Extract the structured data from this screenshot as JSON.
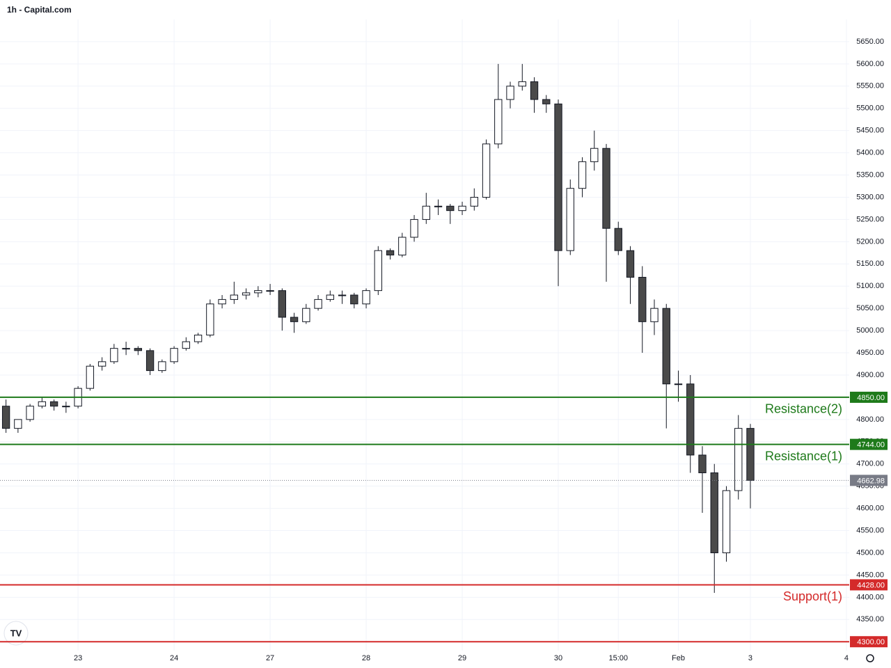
{
  "chart_data": {
    "type": "candlestick",
    "title": "1h - Capital.com",
    "xlim": [
      -19.5,
      192.7
    ],
    "xticks": [
      {
        "value": 0,
        "label": "23"
      },
      {
        "value": 24,
        "label": "24"
      },
      {
        "value": 48,
        "label": "27"
      },
      {
        "value": 72,
        "label": "28"
      },
      {
        "value": 96,
        "label": "29"
      },
      {
        "value": 120,
        "label": "30"
      },
      {
        "value": 135,
        "label": "15:00"
      },
      {
        "value": 150,
        "label": "Feb"
      },
      {
        "value": 168,
        "label": "3"
      },
      {
        "value": 192,
        "label": "4"
      }
    ],
    "ylim": [
      4280,
      5700
    ],
    "yticks": [
      {
        "value": 4350,
        "label": "4350.00"
      },
      {
        "value": 4400,
        "label": "4400.00"
      },
      {
        "value": 4450,
        "label": "4450.00"
      },
      {
        "value": 4500,
        "label": "4500.00"
      },
      {
        "value": 4550,
        "label": "4550.00"
      },
      {
        "value": 4600,
        "label": "4600.00"
      },
      {
        "value": 4650,
        "label": "4650.00"
      },
      {
        "value": 4700,
        "label": "4700.00"
      },
      {
        "value": 4750,
        "label": "4750.00"
      },
      {
        "value": 4800,
        "label": "4800.00"
      },
      {
        "value": 4900,
        "label": "4900.00"
      },
      {
        "value": 4950,
        "label": "4950.00"
      },
      {
        "value": 5000,
        "label": "5000.00"
      },
      {
        "value": 5050,
        "label": "5050.00"
      },
      {
        "value": 5100,
        "label": "5100.00"
      },
      {
        "value": 5150,
        "label": "5150.00"
      },
      {
        "value": 5200,
        "label": "5200.00"
      },
      {
        "value": 5250,
        "label": "5250.00"
      },
      {
        "value": 5300,
        "label": "5300.00"
      },
      {
        "value": 5350,
        "label": "5350.00"
      },
      {
        "value": 5400,
        "label": "5400.00"
      },
      {
        "value": 5450,
        "label": "5450.00"
      },
      {
        "value": 5500,
        "label": "5500.00"
      },
      {
        "value": 5550,
        "label": "5550.00"
      },
      {
        "value": 5600,
        "label": "5600.00"
      },
      {
        "value": 5650,
        "label": "5650.00"
      }
    ],
    "grid": true,
    "up_color": "#ffffff",
    "down_color": "#4a4a4a",
    "x": [
      -18,
      -15,
      -12,
      -9,
      -6,
      -3,
      0,
      3,
      6,
      9,
      12,
      15,
      18,
      21,
      24,
      27,
      30,
      33,
      36,
      39,
      42,
      45,
      48,
      51,
      54,
      57,
      60,
      63,
      66,
      69,
      72,
      75,
      78,
      81,
      84,
      87,
      90,
      93,
      96,
      99,
      102,
      105,
      108,
      111,
      114,
      117,
      120,
      123,
      126,
      129,
      132,
      135,
      138,
      141,
      144,
      147,
      150,
      153,
      156,
      159,
      162,
      165,
      168
    ],
    "open": [
      4830,
      4780,
      4800,
      4830,
      4840,
      4830,
      4830,
      4870,
      4920,
      4930,
      4960,
      4960,
      4955,
      4910,
      4930,
      4960,
      4975,
      4990,
      5060,
      5070,
      5080,
      5085,
      5090,
      5090,
      5030,
      5020,
      5050,
      5070,
      5080,
      5080,
      5060,
      5090,
      5180,
      5170,
      5210,
      5250,
      5280,
      5280,
      5270,
      5280,
      5300,
      5420,
      5520,
      5550,
      5560,
      5520,
      5510,
      5180,
      5320,
      5380,
      5410,
      5230,
      5180,
      5120,
      5020,
      5050,
      4880,
      4880,
      4720,
      4680,
      4500,
      4640,
      4780
    ],
    "high": [
      4845,
      4800,
      4835,
      4850,
      4845,
      4840,
      4875,
      4925,
      4940,
      4970,
      4975,
      4965,
      4960,
      4935,
      4965,
      4985,
      4995,
      5070,
      5080,
      5110,
      5095,
      5100,
      5105,
      5095,
      5040,
      5060,
      5080,
      5090,
      5090,
      5085,
      5095,
      5190,
      5185,
      5220,
      5260,
      5310,
      5295,
      5285,
      5290,
      5320,
      5430,
      5600,
      5560,
      5600,
      5570,
      5530,
      5520,
      5340,
      5390,
      5450,
      5420,
      5245,
      5190,
      5145,
      5070,
      5060,
      4910,
      4900,
      4740,
      4700,
      4650,
      4810,
      4790
    ],
    "low": [
      4770,
      4770,
      4795,
      4825,
      4820,
      4815,
      4825,
      4865,
      4910,
      4925,
      4945,
      4945,
      4900,
      4905,
      4925,
      4955,
      4970,
      4985,
      5050,
      5060,
      5070,
      5075,
      5080,
      5000,
      4995,
      5015,
      5045,
      5065,
      5060,
      5050,
      5050,
      5080,
      5160,
      5165,
      5200,
      5240,
      5260,
      5240,
      5260,
      5270,
      5295,
      5410,
      5500,
      5540,
      5490,
      5490,
      5100,
      5170,
      5300,
      5360,
      5110,
      5170,
      5060,
      4950,
      4990,
      4780,
      4840,
      4680,
      4590,
      4410,
      4480,
      4620,
      4600
    ],
    "close": [
      4780,
      4800,
      4830,
      4840,
      4830,
      4830,
      4870,
      4920,
      4930,
      4960,
      4960,
      4955,
      4910,
      4930,
      4960,
      4975,
      4990,
      5060,
      5070,
      5080,
      5085,
      5090,
      5090,
      5030,
      5020,
      5050,
      5070,
      5080,
      5080,
      5060,
      5090,
      5180,
      5170,
      5210,
      5250,
      5280,
      5280,
      5270,
      5280,
      5300,
      5420,
      5520,
      5550,
      5560,
      5520,
      5510,
      5180,
      5320,
      5380,
      5410,
      5230,
      5180,
      5120,
      5020,
      5050,
      4880,
      4880,
      4720,
      4680,
      4500,
      4640,
      4780,
      4663
    ],
    "levels": [
      {
        "name": "Resistance(2)",
        "value": 4850,
        "label": "4850.00",
        "color": "#1e7a1a"
      },
      {
        "name": "Resistance(1)",
        "value": 4744,
        "label": "4744.00",
        "color": "#1e7a1a"
      },
      {
        "name": "Support(1)",
        "value": 4428,
        "label": "4428.00",
        "color": "#d42a2a"
      },
      {
        "value": 4300,
        "label": "4300.00",
        "color": "#d42a2a"
      }
    ],
    "last_price": {
      "value": 4662.98,
      "label": "4662.98",
      "color": "#787b86"
    }
  }
}
